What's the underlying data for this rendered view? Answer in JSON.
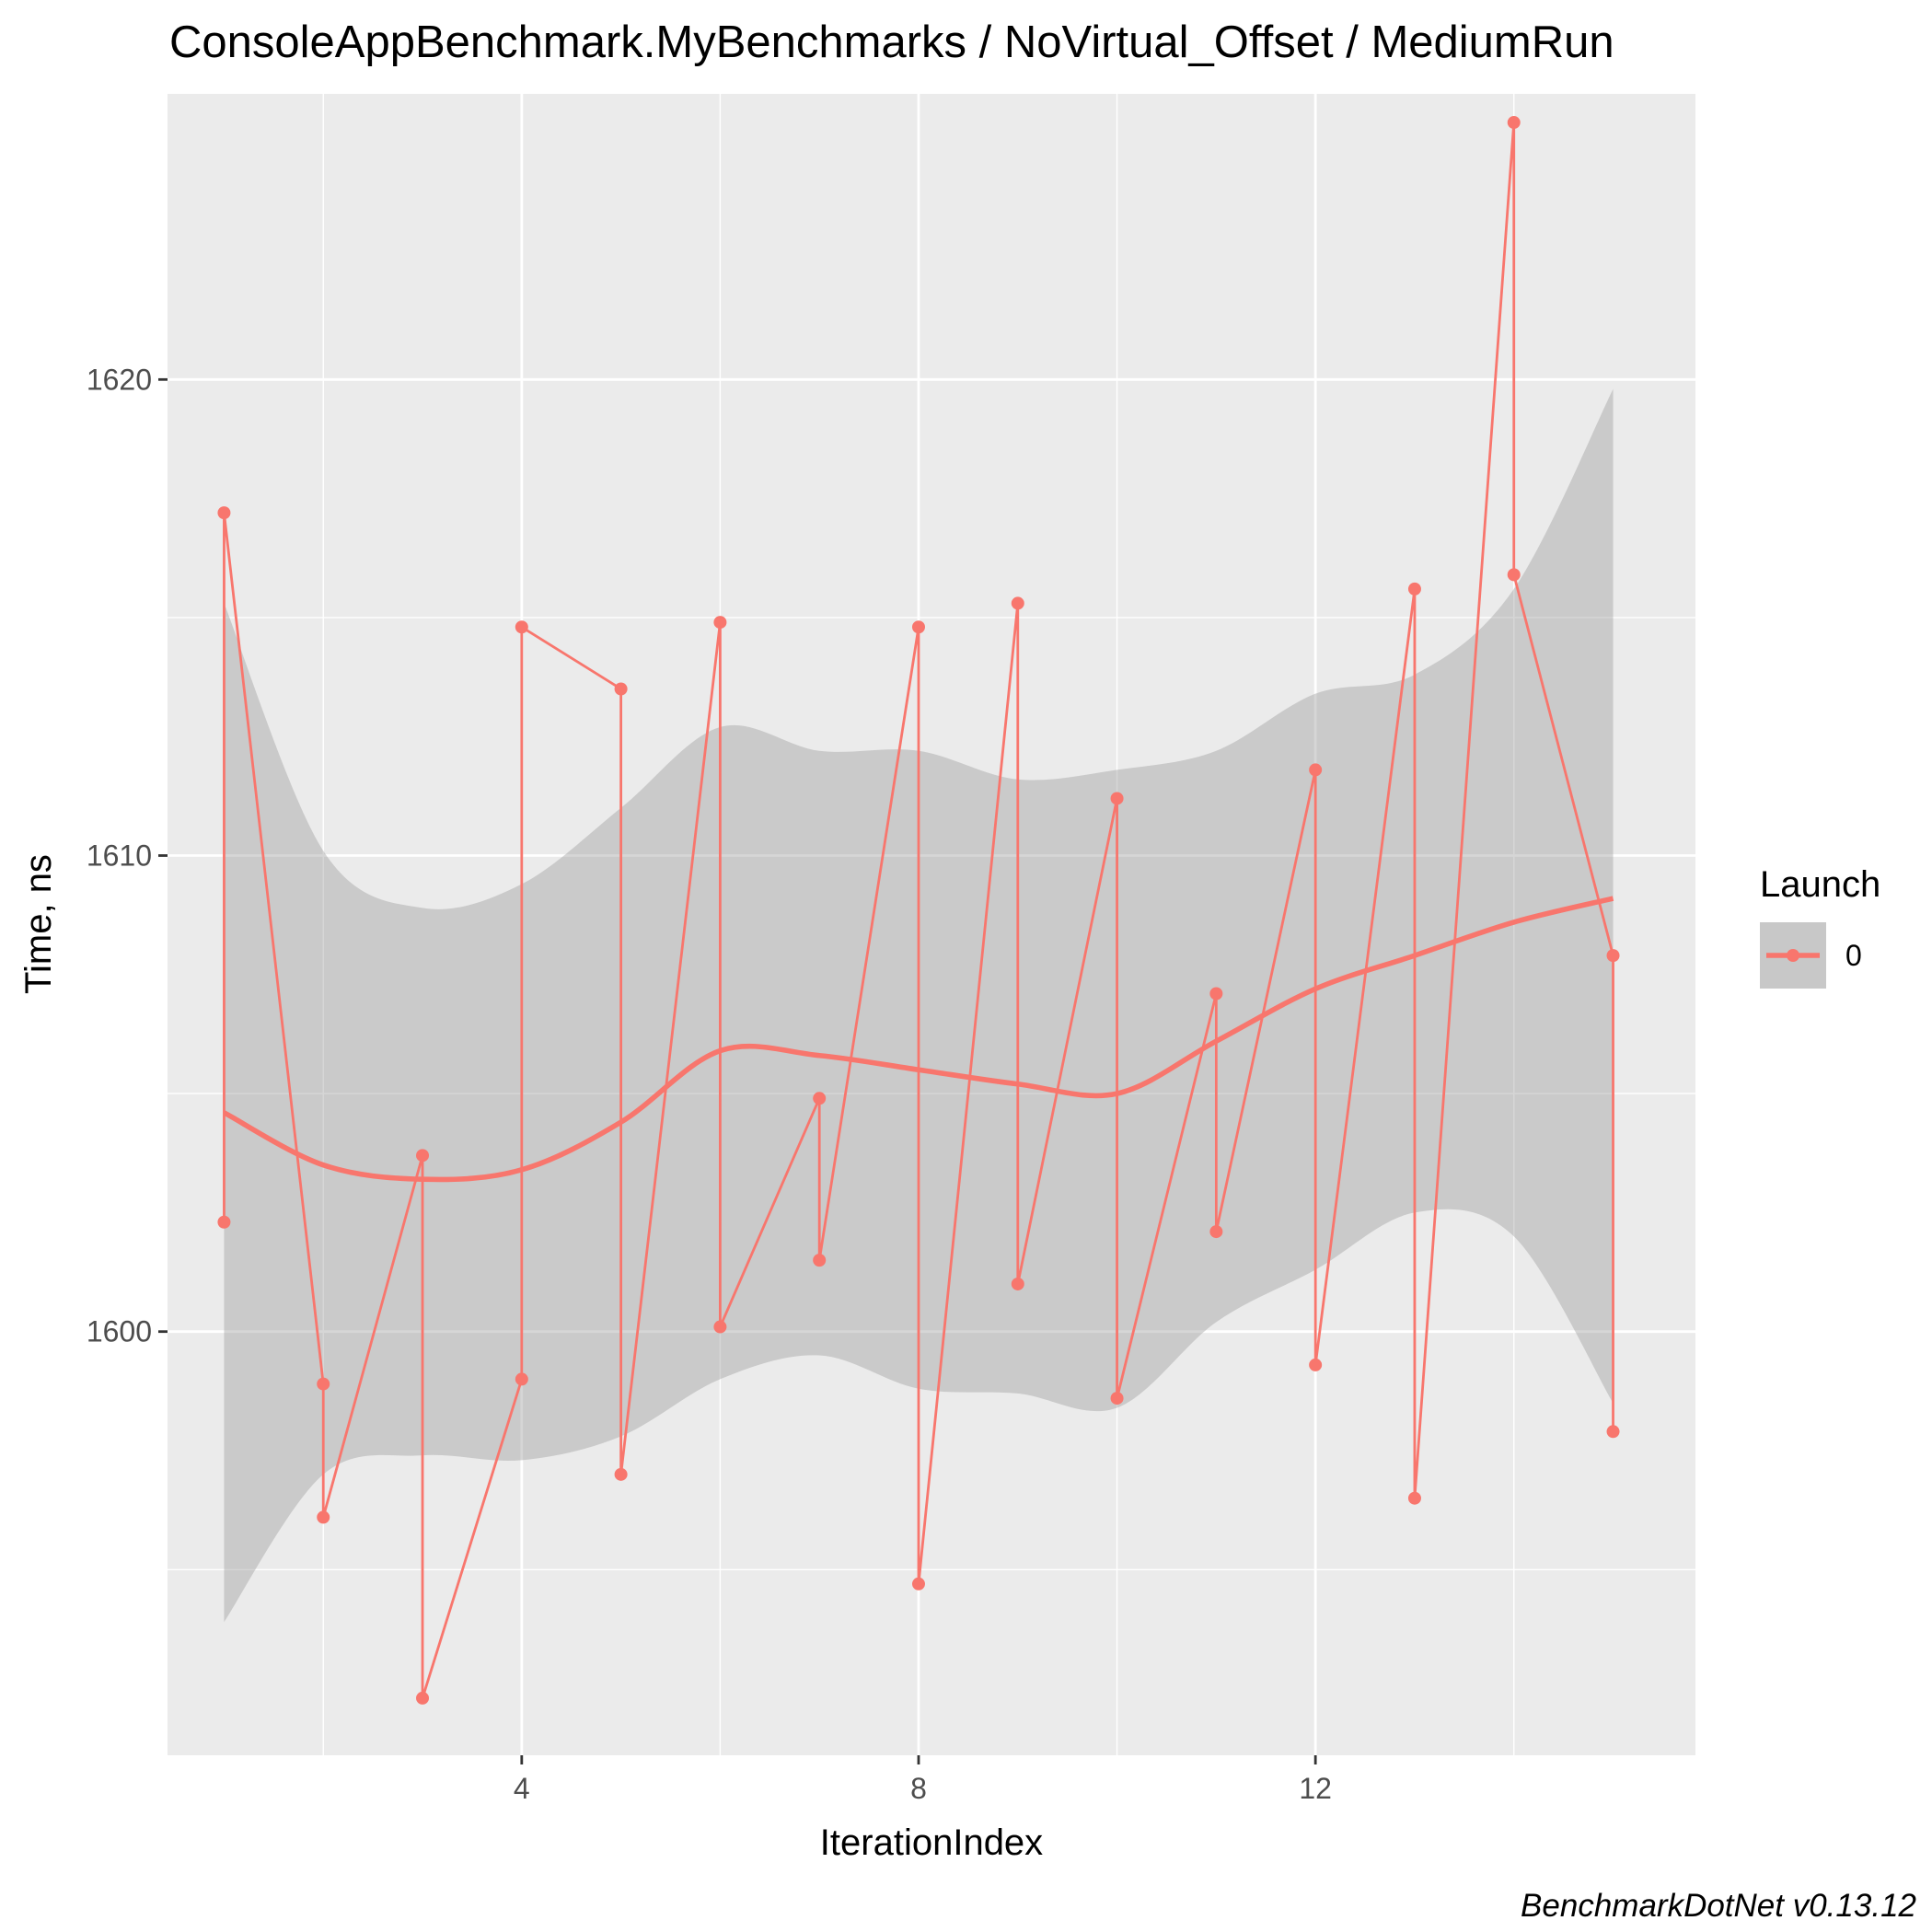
{
  "chart_data": {
    "type": "line",
    "title": "ConsoleAppBenchmark.MyBenchmarks / NoVirtual_Offset / MediumRun",
    "xlabel": "IterationIndex",
    "ylabel": "Time, ns",
    "caption": "BenchmarkDotNet v0.13.12",
    "xlim": [
      0.43,
      15.83
    ],
    "ylim": [
      1591.1,
      1626.0
    ],
    "x_ticks": [
      4,
      8,
      12
    ],
    "y_ticks": [
      1600,
      1610,
      1620
    ],
    "grid": true,
    "legend": {
      "title": "Launch",
      "position": "right",
      "entries": [
        "0"
      ]
    },
    "colors": {
      "series": "#f8766d",
      "ribbon": "#c8c8c8",
      "panel": "#ebebeb",
      "grid": "#ffffff"
    },
    "series": [
      {
        "name": "0",
        "x": [
          1,
          1,
          2,
          2,
          3,
          3,
          4,
          4,
          5,
          5,
          6,
          6,
          7,
          7,
          8,
          8,
          9,
          9,
          10,
          10,
          11,
          11,
          12,
          12,
          13,
          13,
          14,
          14,
          15,
          15
        ],
        "y": [
          1602.3,
          1617.2,
          1598.9,
          1596.1,
          1603.7,
          1592.3,
          1599.0,
          1614.8,
          1613.5,
          1597.0,
          1614.9,
          1600.1,
          1604.9,
          1601.5,
          1614.8,
          1594.7,
          1615.3,
          1601.0,
          1611.2,
          1598.6,
          1607.1,
          1602.1,
          1611.8,
          1599.3,
          1615.6,
          1596.5,
          1625.4,
          1615.9,
          1607.9,
          1597.9
        ]
      }
    ],
    "smooth": {
      "x": [
        1,
        2,
        3,
        4,
        5,
        6,
        7,
        8,
        9,
        10,
        11,
        12,
        13,
        14,
        15
      ],
      "y": [
        1604.6,
        1603.5,
        1603.2,
        1603.4,
        1604.4,
        1605.9,
        1605.8,
        1605.5,
        1605.2,
        1605.0,
        1606.1,
        1607.2,
        1607.9,
        1608.6,
        1609.1
      ],
      "lower": [
        1593.9,
        1597.0,
        1597.4,
        1597.3,
        1597.8,
        1599.0,
        1599.5,
        1598.8,
        1598.7,
        1598.4,
        1600.2,
        1601.3,
        1602.5,
        1602.0,
        1598.5
      ],
      "upper": [
        1615.3,
        1610.1,
        1608.9,
        1609.4,
        1611.0,
        1612.7,
        1612.2,
        1612.2,
        1611.6,
        1611.8,
        1612.2,
        1613.4,
        1613.8,
        1615.6,
        1619.8
      ]
    }
  }
}
